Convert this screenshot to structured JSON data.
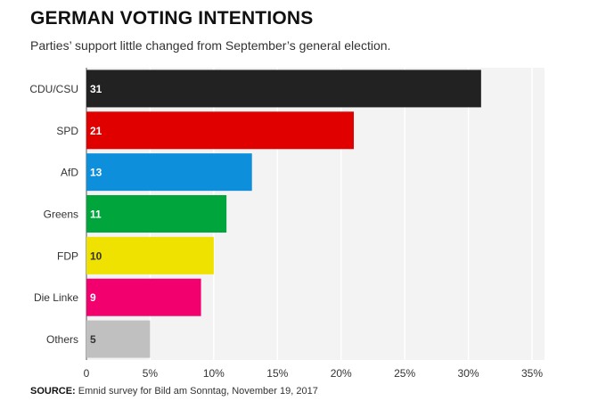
{
  "title": "GERMAN VOTING INTENTIONS",
  "subtitle": "Parties’ support little changed from September’s general election.",
  "source": {
    "label": "SOURCE:",
    "text": "Emnid survey for Bild am Sonntag, November 19, 2017"
  },
  "colors": {
    "background": "#f3f3f3",
    "grid": "#ffffff",
    "axis": "#555555"
  },
  "chart_data": {
    "type": "bar",
    "orientation": "horizontal",
    "categories": [
      "CDU/CSU",
      "SPD",
      "AfD",
      "Greens",
      "FDP",
      "Die Linke",
      "Others"
    ],
    "values": [
      31,
      21,
      13,
      11,
      10,
      9,
      5
    ],
    "value_labels": [
      "31",
      "21",
      "13",
      "11",
      "10",
      "9",
      "5"
    ],
    "bar_colors": [
      "#222222",
      "#e00000",
      "#0d8fdc",
      "#00a53c",
      "#efe100",
      "#f2006e",
      "#c0c0c0"
    ],
    "label_colors": [
      "#ffffff",
      "#ffffff",
      "#ffffff",
      "#ffffff",
      "#333333",
      "#ffffff",
      "#333333"
    ],
    "xlim": [
      0,
      35
    ],
    "xticks": [
      0,
      5,
      10,
      15,
      20,
      25,
      30,
      35
    ],
    "xtick_labels": [
      "0",
      "5%",
      "10%",
      "15%",
      "20%",
      "25%",
      "30%",
      "35%"
    ],
    "grid": true,
    "title": "GERMAN VOTING INTENTIONS",
    "xlabel": "",
    "ylabel": ""
  }
}
